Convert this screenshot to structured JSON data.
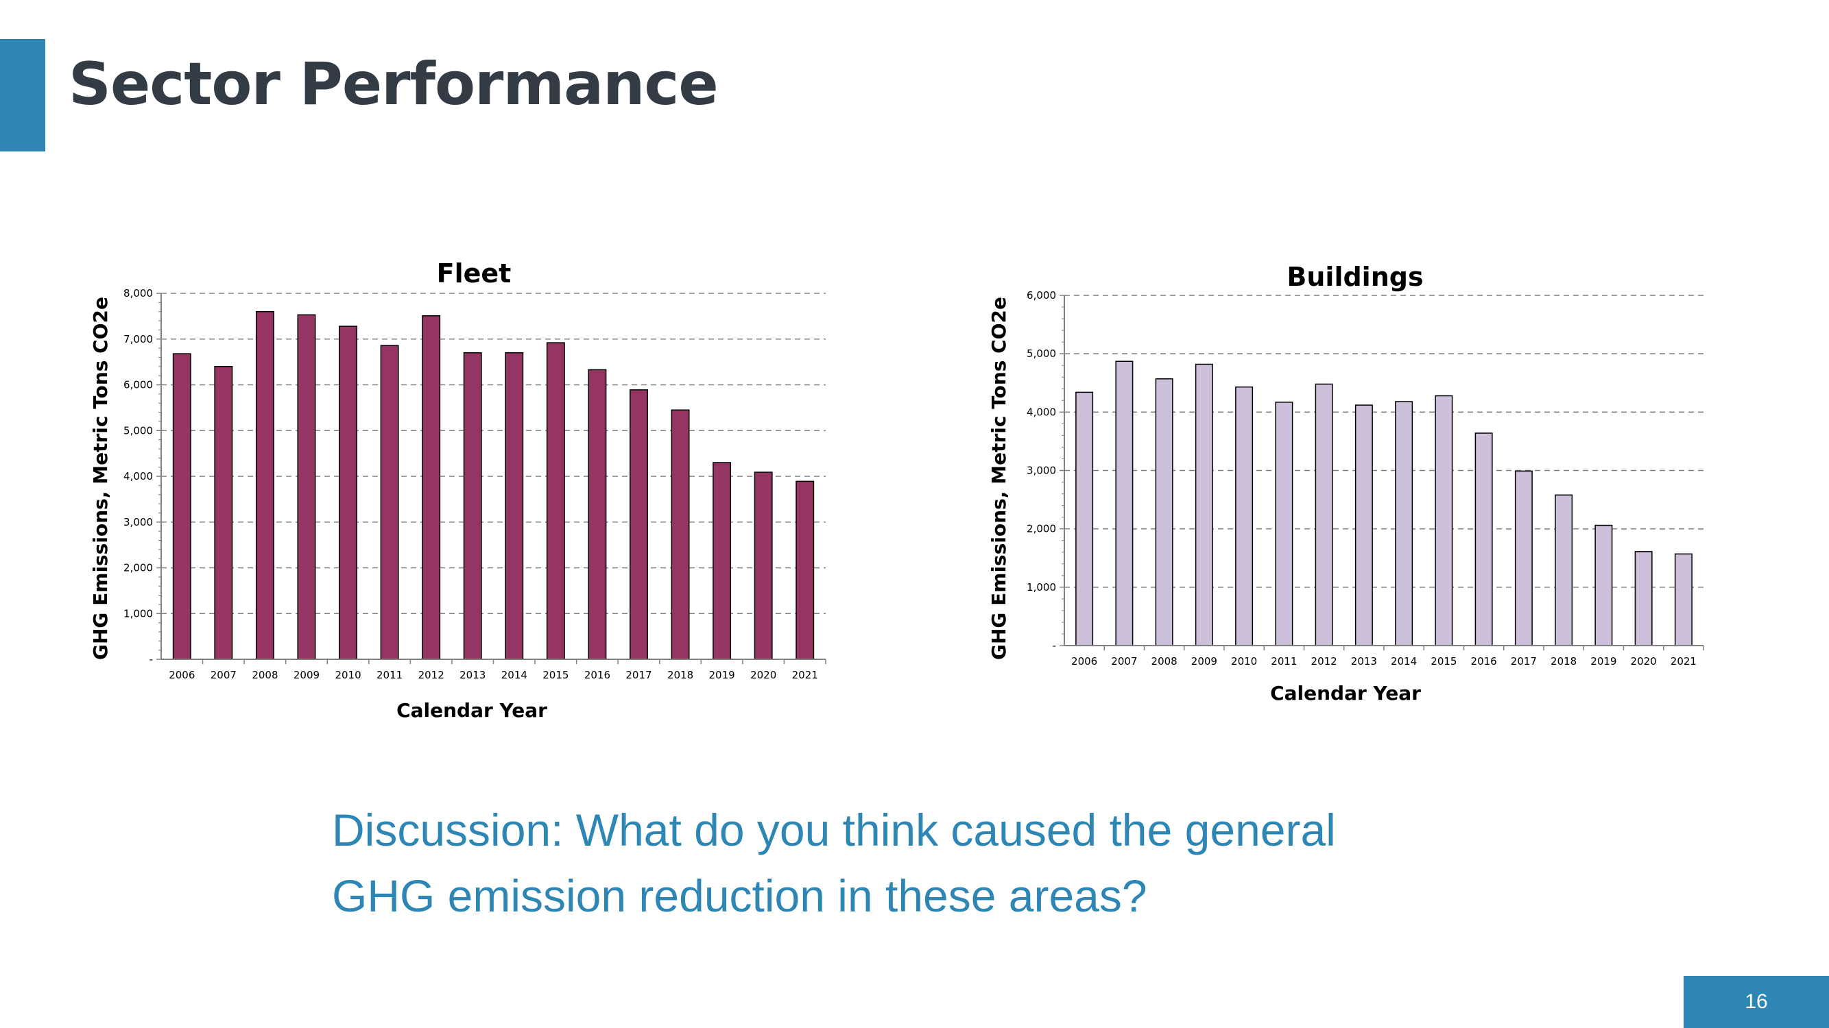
{
  "slide": {
    "title": "Sector Performance",
    "discussion_line1": "Discussion:  What do you think caused the general",
    "discussion_line2": "GHG emission reduction in these areas?",
    "page_number": "16",
    "accent_color": "#2E86B4",
    "title_color": "#333B45"
  },
  "chart_data": [
    {
      "type": "bar",
      "title": "Fleet",
      "xlabel": "Calendar Year",
      "ylabel": "GHG Emissions, Metric Tons CO2e",
      "categories": [
        "2006",
        "2007",
        "2008",
        "2009",
        "2010",
        "2011",
        "2012",
        "2013",
        "2014",
        "2015",
        "2016",
        "2017",
        "2018",
        "2019",
        "2020",
        "2021"
      ],
      "values": [
        6680,
        6400,
        7600,
        7530,
        7280,
        6860,
        7510,
        6700,
        6700,
        6920,
        6330,
        5890,
        5450,
        4300,
        4090,
        3890
      ],
      "ylim": [
        0,
        8000
      ],
      "yticks": [
        0,
        1000,
        2000,
        3000,
        4000,
        5000,
        6000,
        7000,
        8000
      ],
      "ytick_labels": [
        "-",
        "1,000",
        "2,000",
        "3,000",
        "4,000",
        "5,000",
        "6,000",
        "7,000",
        "8,000"
      ],
      "grid": "horizontal dashed",
      "legend": "none",
      "bar_color": "#953563"
    },
    {
      "type": "bar",
      "title": "Buildings",
      "xlabel": "Calendar Year",
      "ylabel": "GHG Emissions, Metric Tons CO2e",
      "categories": [
        "2006",
        "2007",
        "2008",
        "2009",
        "2010",
        "2011",
        "2012",
        "2013",
        "2014",
        "2015",
        "2016",
        "2017",
        "2018",
        "2019",
        "2020",
        "2021"
      ],
      "values": [
        4340,
        4870,
        4570,
        4820,
        4430,
        4170,
        4480,
        4120,
        4180,
        4280,
        3640,
        2990,
        2580,
        2060,
        1610,
        1570
      ],
      "ylim": [
        0,
        6000
      ],
      "yticks": [
        0,
        1000,
        2000,
        3000,
        4000,
        5000,
        6000
      ],
      "ytick_labels": [
        "-",
        "1,000",
        "2,000",
        "3,000",
        "4,000",
        "5,000",
        "6,000"
      ],
      "grid": "horizontal dashed",
      "legend": "none",
      "bar_color": "#CCC0DA"
    }
  ]
}
